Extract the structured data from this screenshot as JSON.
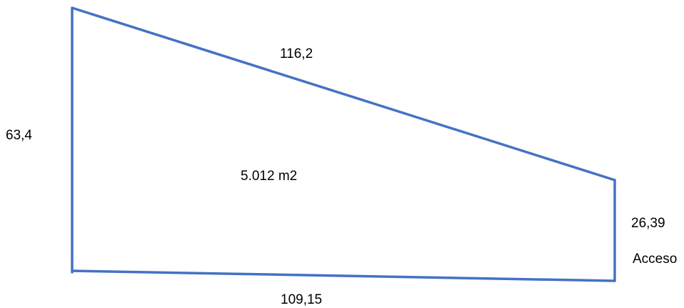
{
  "plot": {
    "line_color": "#4472C4",
    "text_color": "#000000",
    "area": "5.012 m2",
    "sides": {
      "top": "116,2",
      "left": "63,4",
      "right": "26,39",
      "bottom": "109,15"
    },
    "access_label": "Acceso"
  }
}
